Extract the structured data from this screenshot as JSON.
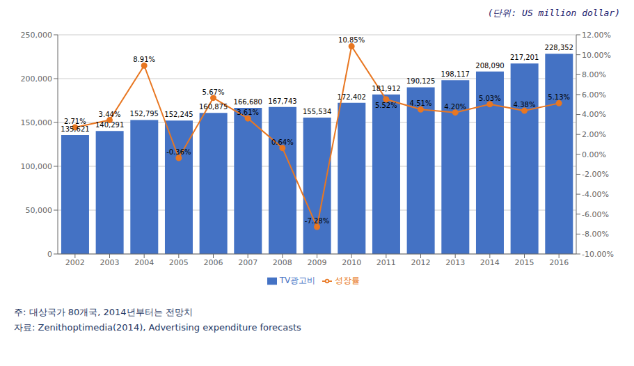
{
  "chart_data": {
    "type": "bar",
    "categories": [
      "2002",
      "2003",
      "2004",
      "2005",
      "2006",
      "2007",
      "2008",
      "2009",
      "2010",
      "2011",
      "2012",
      "2013",
      "2014",
      "2015",
      "2016"
    ],
    "series": [
      {
        "name": "TV광고비",
        "type": "bar",
        "color": "#4472C4",
        "values": [
          135621,
          140291,
          152795,
          152245,
          160875,
          166680,
          167743,
          155534,
          172402,
          181912,
          190125,
          198117,
          208090,
          217201,
          228352
        ],
        "value_labels": [
          "135,621",
          "140,291",
          "152,795",
          "152,245",
          "160,875",
          "166,680",
          "167,743",
          "155,534",
          "172,402",
          "181,912",
          "190,125",
          "198,117",
          "208,090",
          "217,201",
          "228,352"
        ]
      },
      {
        "name": "성장률",
        "type": "line",
        "color": "#E87722",
        "axis": "y2",
        "marker": "circle",
        "values": [
          2.71,
          3.44,
          8.91,
          -0.36,
          5.67,
          3.61,
          0.64,
          -7.28,
          10.85,
          5.52,
          4.51,
          4.2,
          5.03,
          4.38,
          5.13
        ],
        "value_labels": [
          "2.71%",
          "3.44%",
          "8.91%",
          "-0.36%",
          "5.67%",
          "3.61%",
          "0.64%",
          "-7.28%",
          "10.85%",
          "5.52%",
          "4.51%",
          "4.20%",
          "5.03%",
          "4.38%",
          "5.13%"
        ]
      }
    ],
    "ylim": [
      0,
      250000
    ],
    "yticks": [
      0,
      {
        "value": 50000,
        "label": "50,000"
      },
      {
        "value": 100000,
        "label": "100,000"
      },
      {
        "value": 150000,
        "label": "150,000"
      },
      {
        "value": 200000,
        "label": "200,000"
      },
      {
        "value": 250000,
        "label": "250,000"
      }
    ],
    "y2lim": [
      -10,
      12
    ],
    "y2ticks": [
      {
        "value": -10,
        "label": "-10.00%"
      },
      {
        "value": -8,
        "label": "-8.00%"
      },
      {
        "value": -6,
        "label": "-6.00%"
      },
      {
        "value": -4,
        "label": "-4.00%"
      },
      {
        "value": -2,
        "label": "-2.00%"
      },
      {
        "value": 0,
        "label": "0.00%"
      },
      {
        "value": 2,
        "label": "2.00%"
      },
      {
        "value": 4,
        "label": "4.00%"
      },
      {
        "value": 6,
        "label": "6.00%"
      },
      {
        "value": 8,
        "label": "8.00%"
      },
      {
        "value": 10,
        "label": "10.00%"
      },
      {
        "value": 12,
        "label": "12.00%"
      }
    ],
    "grid": true,
    "legend": "bottom",
    "data_labels": true,
    "annotations": [
      "(단위: US million dollar)",
      "주: 대상국가 80개국, 2014년부터는 전망치",
      "자료: Zenithoptimedia(2014), Advertising expenditure forecasts"
    ]
  }
}
